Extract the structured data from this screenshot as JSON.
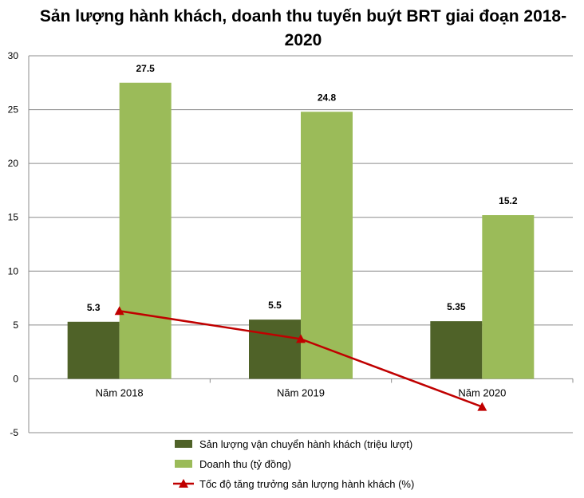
{
  "chart_data": {
    "type": "bar",
    "title": "Sản lượng hành khách, doanh thu tuyến buýt BRT giai đoạn 2018-2020",
    "categories": [
      "Năm 2018",
      "Năm 2019",
      "Năm 2020"
    ],
    "ylim": [
      -5,
      30
    ],
    "yticks": [
      30,
      25,
      20,
      15,
      10,
      5,
      0,
      -5
    ],
    "grid": true,
    "legend_position": "bottom",
    "series": [
      {
        "name": "Sản lượng vận chuyển hành khách (triệu lượt)",
        "type": "bar",
        "color": "#4f6228",
        "values": [
          5.3,
          5.5,
          5.35
        ],
        "labels": [
          "5.3",
          "5.5",
          "5.35"
        ]
      },
      {
        "name": "Doanh thu (tỷ đồng)",
        "type": "bar",
        "color": "#9bbb59",
        "values": [
          27.5,
          24.8,
          15.2
        ],
        "labels": [
          "27.5",
          "24.8",
          "15.2"
        ]
      },
      {
        "name": "Tốc độ tăng trưởng sản lượng hành khách (%)",
        "type": "line",
        "color": "#c00000",
        "marker": "triangle",
        "values": [
          6.3,
          3.7,
          -2.6
        ]
      }
    ]
  }
}
